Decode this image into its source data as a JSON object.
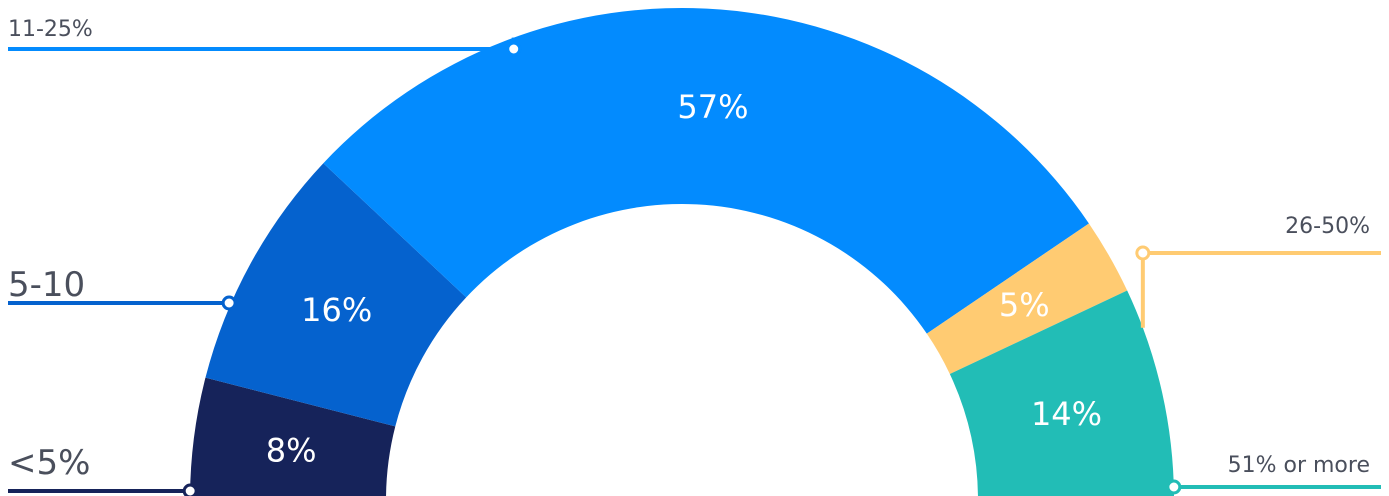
{
  "chart_data": {
    "type": "pie",
    "variant": "semicircle-donut",
    "title": "",
    "slices": [
      {
        "category": "<5%",
        "value": 8,
        "label": "8%",
        "color": "#16235a"
      },
      {
        "category": "5-10",
        "value": 16,
        "label": "16%",
        "color": "#0562ce"
      },
      {
        "category": "11-25%",
        "value": 57,
        "label": "57%",
        "color": "#038bfe"
      },
      {
        "category": "26-50%",
        "value": 5,
        "label": "5%",
        "color": "#ffcb72"
      },
      {
        "category": "51% or more",
        "value": 14,
        "label": "14%",
        "color": "#22bdb6"
      }
    ],
    "legend": "leader-line callouts on left and right"
  }
}
